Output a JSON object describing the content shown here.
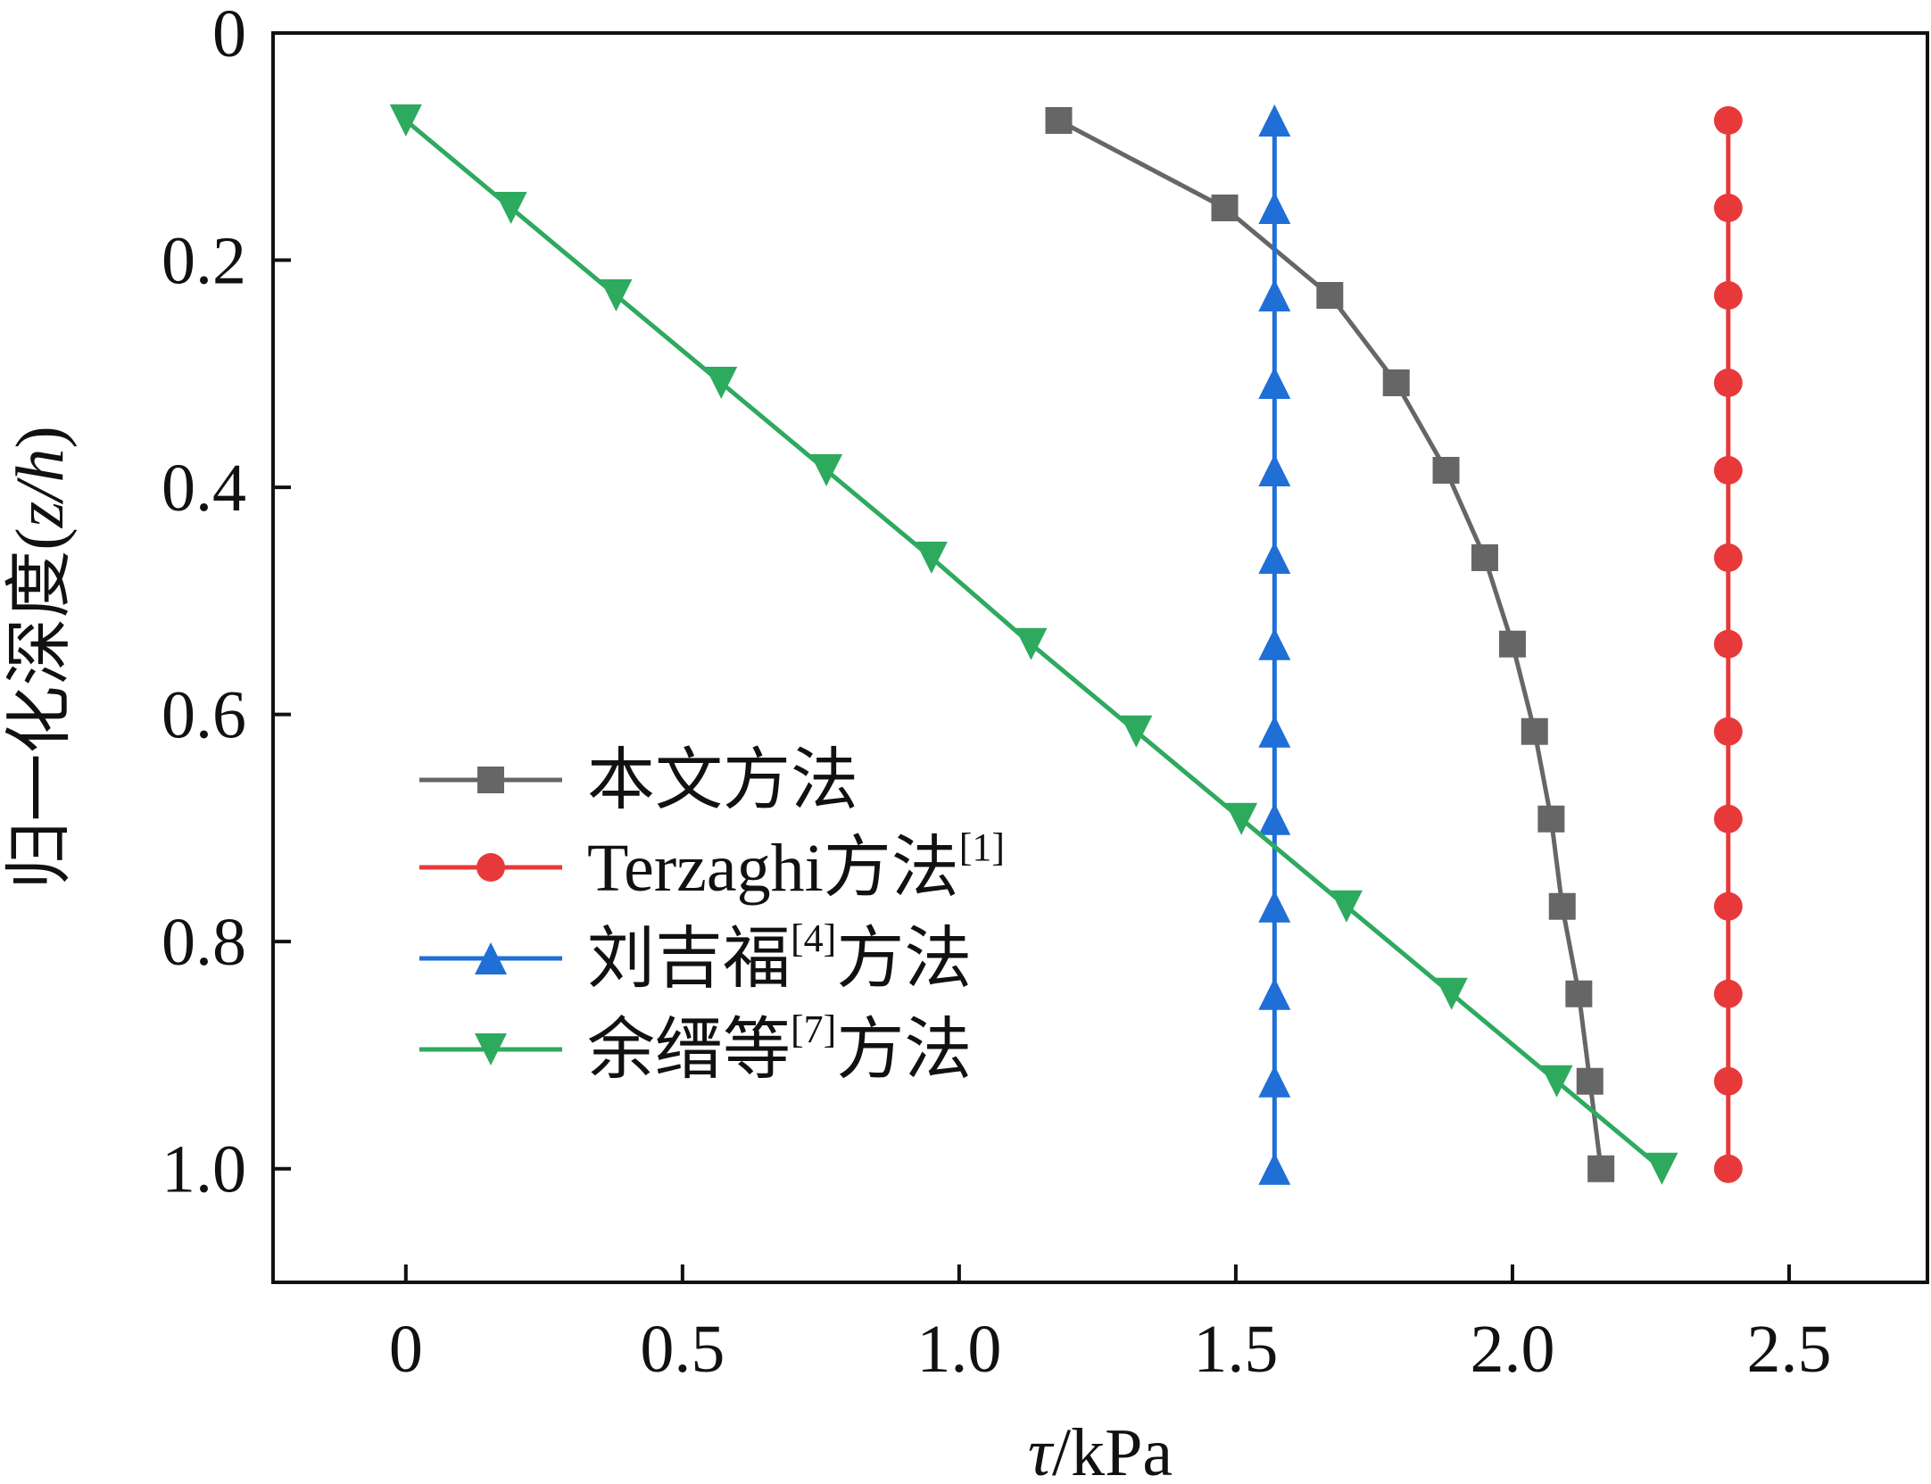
{
  "chart_data": {
    "type": "line",
    "title": "",
    "xlabel": {
      "symbol": "τ",
      "unit": "/kPa"
    },
    "ylabel": {
      "text": "归一化深度(",
      "symbol": "z/h",
      "close": ")"
    },
    "xlim": [
      -0.24,
      2.75
    ],
    "ylim": [
      0,
      1.1
    ],
    "y_inverted": true,
    "xticks": [
      0,
      0.5,
      1.0,
      1.5,
      2.0,
      2.5
    ],
    "xtick_labels": [
      "0",
      "0.5",
      "1.0",
      "1.5",
      "2.0",
      "2.5"
    ],
    "yticks": [
      0,
      0.2,
      0.4,
      0.6,
      0.8,
      1.0
    ],
    "ytick_labels": [
      "0",
      "0.2",
      "0.4",
      "0.6",
      "0.8",
      "1.0"
    ],
    "grid": false,
    "legend_position": "left",
    "series": [
      {
        "name": "本文方法",
        "sup": "",
        "name_after": "",
        "color": "#666666",
        "marker": "square",
        "x": [
          1.18,
          1.48,
          1.67,
          1.79,
          1.88,
          1.95,
          2.0,
          2.04,
          2.07,
          2.09,
          2.12,
          2.14,
          2.16
        ],
        "y": [
          0.077,
          0.154,
          0.231,
          0.308,
          0.385,
          0.462,
          0.538,
          0.615,
          0.692,
          0.769,
          0.846,
          0.923,
          1.0
        ]
      },
      {
        "name": "Terzaghi方法",
        "sup": "[1]",
        "name_after": "",
        "color": "#e8393a",
        "marker": "circle",
        "x": [
          2.39,
          2.39,
          2.39,
          2.39,
          2.39,
          2.39,
          2.39,
          2.39,
          2.39,
          2.39,
          2.39,
          2.39,
          2.39
        ],
        "y": [
          0.077,
          0.154,
          0.231,
          0.308,
          0.385,
          0.462,
          0.538,
          0.615,
          0.692,
          0.769,
          0.846,
          0.923,
          1.0
        ]
      },
      {
        "name": "刘吉福",
        "sup": "[4]",
        "name_after": "方法",
        "color": "#1f6fd6",
        "marker": "triangle-up",
        "x": [
          1.57,
          1.57,
          1.57,
          1.57,
          1.57,
          1.57,
          1.57,
          1.57,
          1.57,
          1.57,
          1.57,
          1.57,
          1.57
        ],
        "y": [
          0.077,
          0.154,
          0.231,
          0.308,
          0.385,
          0.462,
          0.538,
          0.615,
          0.692,
          0.769,
          0.846,
          0.923,
          1.0
        ]
      },
      {
        "name": "余缙等",
        "sup": "[7]",
        "name_after": "方法",
        "color": "#2eaa5e",
        "marker": "triangle-down",
        "x": [
          0.0,
          0.19,
          0.38,
          0.57,
          0.76,
          0.95,
          1.13,
          1.32,
          1.51,
          1.7,
          1.89,
          2.08,
          2.27
        ],
        "y": [
          0.077,
          0.154,
          0.231,
          0.308,
          0.385,
          0.462,
          0.538,
          0.615,
          0.692,
          0.769,
          0.846,
          0.923,
          1.0
        ]
      }
    ]
  }
}
